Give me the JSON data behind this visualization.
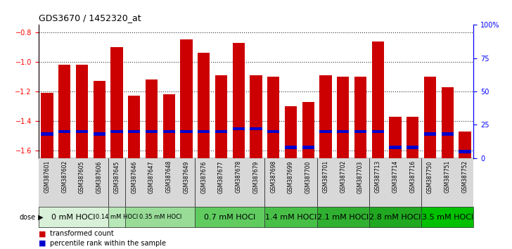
{
  "title": "GDS3670 / 1452320_at",
  "samples": [
    "GSM387601",
    "GSM387602",
    "GSM387605",
    "GSM387606",
    "GSM387645",
    "GSM387646",
    "GSM387647",
    "GSM387648",
    "GSM387649",
    "GSM387676",
    "GSM387677",
    "GSM387678",
    "GSM387679",
    "GSM387698",
    "GSM387699",
    "GSM387700",
    "GSM387701",
    "GSM387702",
    "GSM387703",
    "GSM387713",
    "GSM387714",
    "GSM387716",
    "GSM387750",
    "GSM387751",
    "GSM387752"
  ],
  "transformed_counts": [
    -1.21,
    -1.02,
    -1.02,
    -1.13,
    -0.9,
    -1.23,
    -1.12,
    -1.22,
    -0.85,
    -0.94,
    -1.09,
    -0.87,
    -1.09,
    -1.1,
    -1.3,
    -1.27,
    -1.09,
    -1.1,
    -1.1,
    -0.86,
    -1.37,
    -1.37,
    -1.1,
    -1.17,
    -1.47
  ],
  "percentile_ranks": [
    18,
    20,
    20,
    18,
    20,
    20,
    20,
    20,
    20,
    20,
    20,
    22,
    22,
    20,
    8,
    8,
    20,
    20,
    20,
    20,
    8,
    8,
    18,
    18,
    5
  ],
  "dose_groups": [
    {
      "label": "0 mM HOCl",
      "start": 0,
      "end": 3
    },
    {
      "label": "0.14 mM HOCl",
      "start": 4,
      "end": 4
    },
    {
      "label": "0.35 mM HOCl",
      "start": 5,
      "end": 8
    },
    {
      "label": "0.7 mM HOCl",
      "start": 9,
      "end": 12
    },
    {
      "label": "1.4 mM HOCl",
      "start": 13,
      "end": 15
    },
    {
      "label": "2.1 mM HOCl",
      "start": 16,
      "end": 18
    },
    {
      "label": "2.8 mM HOCl",
      "start": 19,
      "end": 21
    },
    {
      "label": "3.5 mM HOCl",
      "start": 22,
      "end": 24
    }
  ],
  "dose_colors": [
    "#d8f0d8",
    "#b8e8b8",
    "#98dc98",
    "#60cc60",
    "#48c048",
    "#30b030",
    "#20a820",
    "#00c000"
  ],
  "dose_font_sizes": [
    8,
    6,
    6,
    8,
    8,
    8,
    8,
    8
  ],
  "ylim_left": [
    -1.65,
    -0.75
  ],
  "ylim_right": [
    0,
    100
  ],
  "yticks_left": [
    -1.6,
    -1.4,
    -1.2,
    -1.0,
    -0.8
  ],
  "yticks_right": [
    0,
    25,
    50,
    75,
    100
  ],
  "bar_color": "#cc0000",
  "percentile_color": "#0000cc",
  "bg_color": "#ffffff",
  "bar_bottom": -1.65,
  "percentile_bar_height": 0.022,
  "legend_labels": [
    "transformed count",
    "percentile rank within the sample"
  ],
  "tick_label_bg": "#d8d8d8"
}
